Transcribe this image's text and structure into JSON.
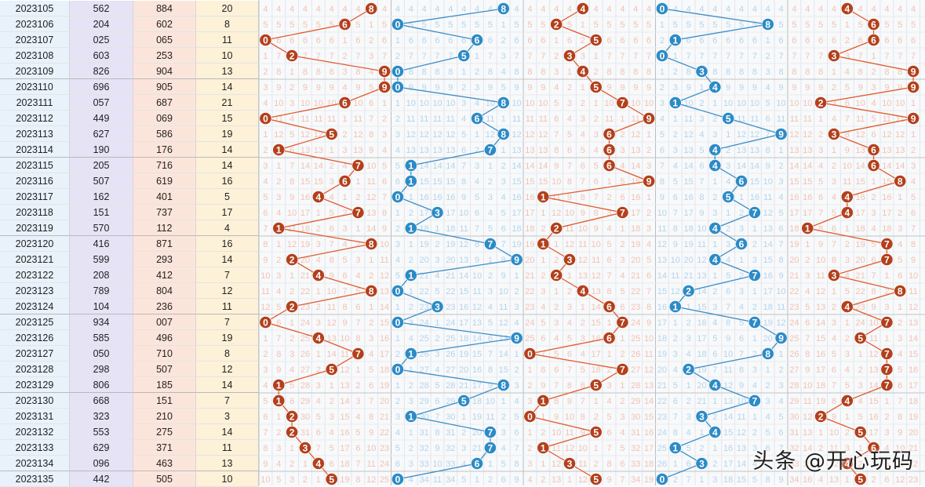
{
  "watermark": "头条 @开心玩码",
  "colors": {
    "col_period_bg": "#e9f2fb",
    "col_number_bg": "#e6e3f6",
    "col_group_bg": "#fbe5db",
    "col_sum_bg": "#fdf1d8",
    "red_ball": "#b3401c",
    "blue_ball": "#2c8bc6",
    "red_line": "#e2592b",
    "blue_line": "#3b8dc9",
    "red_digits": "#f2c2b2",
    "blue_digits": "#b6d4ea"
  },
  "chart_data": {
    "type": "line",
    "panel_type": "lottery-trend-chart",
    "digit_range": [
      0,
      9
    ],
    "series_colors": [
      "red",
      "blue",
      "red",
      "blue",
      "red"
    ],
    "rows": [
      {
        "period": "2023105",
        "number": "562",
        "group": "884",
        "sum": "20",
        "trend": [
          8,
          8,
          4,
          0,
          4
        ]
      },
      {
        "period": "2023106",
        "number": "204",
        "group": "602",
        "sum": "8",
        "trend": [
          6,
          0,
          2,
          8,
          6
        ]
      },
      {
        "period": "2023107",
        "number": "025",
        "group": "065",
        "sum": "11",
        "trend": [
          0,
          6,
          5,
          1,
          6
        ]
      },
      {
        "period": "2023108",
        "number": "603",
        "group": "253",
        "sum": "10",
        "trend": [
          2,
          5,
          3,
          0,
          3
        ]
      },
      {
        "period": "2023109",
        "number": "826",
        "group": "904",
        "sum": "13",
        "trend": [
          9,
          0,
          4,
          3,
          9
        ]
      },
      {
        "period": "2023110",
        "number": "696",
        "group": "905",
        "sum": "14",
        "trend": [
          9,
          0,
          5,
          4,
          9
        ]
      },
      {
        "period": "2023111",
        "number": "057",
        "group": "687",
        "sum": "21",
        "trend": [
          6,
          8,
          7,
          1,
          2
        ]
      },
      {
        "period": "2023112",
        "number": "449",
        "group": "069",
        "sum": "15",
        "trend": [
          0,
          6,
          9,
          5,
          9
        ]
      },
      {
        "period": "2023113",
        "number": "627",
        "group": "586",
        "sum": "19",
        "trend": [
          5,
          8,
          6,
          9,
          3
        ]
      },
      {
        "period": "2023114",
        "number": "190",
        "group": "176",
        "sum": "14",
        "trend": [
          1,
          7,
          6,
          4,
          6
        ]
      },
      {
        "period": "2023115",
        "number": "205",
        "group": "716",
        "sum": "14",
        "trend": [
          7,
          1,
          6,
          4,
          6
        ]
      },
      {
        "period": "2023116",
        "number": "507",
        "group": "619",
        "sum": "16",
        "trend": [
          6,
          1,
          9,
          6,
          8
        ]
      },
      {
        "period": "2023117",
        "number": "162",
        "group": "401",
        "sum": "5",
        "trend": [
          4,
          0,
          1,
          5,
          4
        ]
      },
      {
        "period": "2023118",
        "number": "151",
        "group": "737",
        "sum": "17",
        "trend": [
          7,
          3,
          7,
          7,
          4
        ]
      },
      {
        "period": "2023119",
        "number": "570",
        "group": "112",
        "sum": "4",
        "trend": [
          1,
          1,
          2,
          4,
          1
        ]
      },
      {
        "period": "2023120",
        "number": "416",
        "group": "871",
        "sum": "16",
        "trend": [
          8,
          7,
          1,
          6,
          7
        ]
      },
      {
        "period": "2023121",
        "number": "599",
        "group": "293",
        "sum": "14",
        "trend": [
          2,
          9,
          3,
          4,
          7
        ]
      },
      {
        "period": "2023122",
        "number": "208",
        "group": "412",
        "sum": "7",
        "trend": [
          4,
          1,
          2,
          7,
          3
        ]
      },
      {
        "period": "2023123",
        "number": "789",
        "group": "804",
        "sum": "12",
        "trend": [
          8,
          0,
          4,
          2,
          8
        ]
      },
      {
        "period": "2023124",
        "number": "104",
        "group": "236",
        "sum": "11",
        "trend": [
          2,
          3,
          6,
          1,
          4
        ]
      },
      {
        "period": "2023125",
        "number": "934",
        "group": "007",
        "sum": "7",
        "trend": [
          0,
          0,
          7,
          7,
          7
        ]
      },
      {
        "period": "2023126",
        "number": "585",
        "group": "496",
        "sum": "19",
        "trend": [
          4,
          9,
          6,
          9,
          5
        ]
      },
      {
        "period": "2023127",
        "number": "050",
        "group": "710",
        "sum": "8",
        "trend": [
          7,
          1,
          0,
          8,
          7
        ]
      },
      {
        "period": "2023128",
        "number": "298",
        "group": "507",
        "sum": "12",
        "trend": [
          5,
          0,
          7,
          2,
          7
        ]
      },
      {
        "period": "2023129",
        "number": "806",
        "group": "185",
        "sum": "14",
        "trend": [
          1,
          8,
          5,
          4,
          7
        ]
      },
      {
        "period": "2023130",
        "number": "668",
        "group": "151",
        "sum": "7",
        "trend": [
          1,
          5,
          1,
          7,
          4
        ]
      },
      {
        "period": "2023131",
        "number": "323",
        "group": "210",
        "sum": "3",
        "trend": [
          2,
          1,
          0,
          3,
          2
        ]
      },
      {
        "period": "2023132",
        "number": "553",
        "group": "275",
        "sum": "14",
        "trend": [
          2,
          7,
          5,
          4,
          5
        ]
      },
      {
        "period": "2023133",
        "number": "629",
        "group": "371",
        "sum": "11",
        "trend": [
          3,
          7,
          1,
          1,
          6
        ]
      },
      {
        "period": "2023134",
        "number": "096",
        "group": "463",
        "sum": "13",
        "trend": [
          4,
          6,
          3,
          3,
          4
        ]
      },
      {
        "period": "2023135",
        "number": "442",
        "group": "505",
        "sum": "10",
        "trend": [
          5,
          0,
          5,
          0,
          5
        ]
      }
    ]
  }
}
